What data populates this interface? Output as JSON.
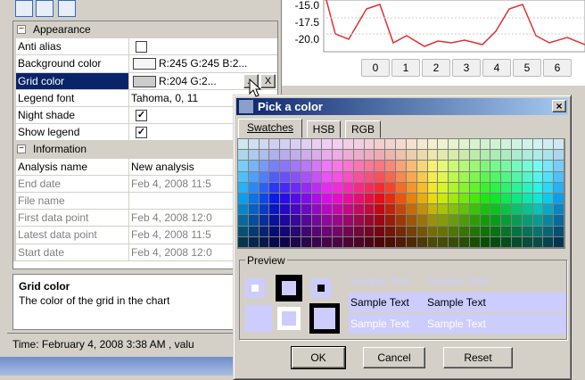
{
  "property_grid": {
    "sections": [
      {
        "title": "Appearance",
        "rows": [
          {
            "name": "Anti alias",
            "checkbox": false
          },
          {
            "name": "Background color",
            "swatch": "#f5f5f5",
            "value": "R:245 G:245 B:2..."
          },
          {
            "name": "Grid color",
            "swatch": "#cccccc",
            "value": "R:204 G:2...",
            "selected": true,
            "buttons": [
              "...",
              "X"
            ]
          },
          {
            "name": "Legend font",
            "value": "Tahoma, 0, 11"
          },
          {
            "name": "Night shade",
            "checkbox": true
          },
          {
            "name": "Show legend",
            "checkbox": true
          }
        ]
      },
      {
        "title": "Information",
        "rows": [
          {
            "name": "Analysis name",
            "value": "New analysis"
          },
          {
            "name": "End date",
            "value": "Feb 4, 2008 11:5",
            "readonly": true
          },
          {
            "name": "File name",
            "value": "",
            "readonly": true
          },
          {
            "name": "First data point",
            "value": "Feb 4, 2008 12:0",
            "readonly": true
          },
          {
            "name": "Latest data point",
            "value": "Feb 4, 2008 11:5",
            "readonly": true
          },
          {
            "name": "Start date",
            "value": "Feb 4, 2008 12:0",
            "readonly": true
          }
        ]
      }
    ]
  },
  "description": {
    "title": "Grid color",
    "text": "The color of the grid in the chart"
  },
  "status_bar": "Time: February 4, 2008 3:38 AM , valu",
  "chart": {
    "y_labels": [
      "-15.0",
      "-17.5",
      "-20.0"
    ],
    "x_labels": [
      "0",
      "1",
      "2",
      "3",
      "4",
      "5",
      "6"
    ]
  },
  "dialog": {
    "title": "Pick a color",
    "tabs": [
      "Swatches",
      "HSB",
      "RGB"
    ],
    "preview_label": "Preview",
    "sample_text": "Sample Text",
    "buttons": [
      "OK",
      "Cancel",
      "Reset"
    ]
  }
}
